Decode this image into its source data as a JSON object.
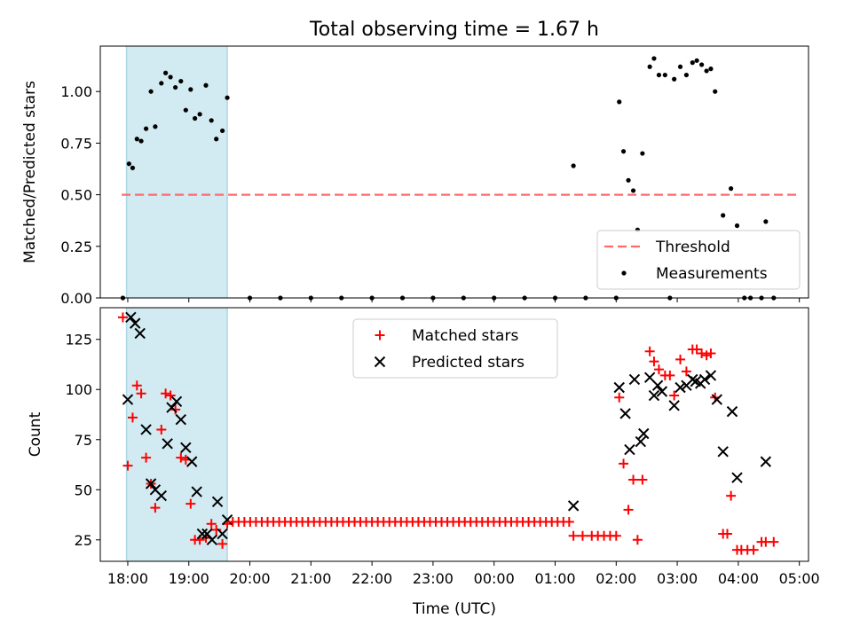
{
  "figure": {
    "title": "Total observing time = 1.67 h",
    "xlabel": "Time (UTC)"
  },
  "chart_data": [
    {
      "type": "scatter",
      "ylabel": "Matched/Predicted stars",
      "xlim": [
        17.55,
        29.15
      ],
      "ylim": [
        0,
        1.22
      ],
      "yticks": [
        0.0,
        0.25,
        0.5,
        0.75,
        1.0
      ],
      "ytick_labels": [
        "0.00",
        "0.25",
        "0.50",
        "0.75",
        "1.00"
      ],
      "xticks": [
        18,
        19,
        20,
        21,
        22,
        23,
        24,
        25,
        26,
        27,
        28,
        29
      ],
      "shaded_span": {
        "x": [
          17.98,
          19.63
        ],
        "color": "#add8e6"
      },
      "legend_position": "lower right",
      "series": [
        {
          "name": "Threshold",
          "kind": "hline",
          "y": 0.5,
          "x": [
            17.9,
            29.0
          ],
          "color": "#ff6b6b",
          "style": "dashed"
        },
        {
          "name": "Measurements",
          "kind": "points",
          "color": "#000000",
          "x": [
            17.92,
            18.02,
            18.08,
            18.15,
            18.22,
            18.3,
            18.38,
            18.45,
            18.55,
            18.62,
            18.7,
            18.78,
            18.87,
            18.95,
            19.03,
            19.1,
            19.18,
            19.28,
            19.37,
            19.45,
            19.55,
            19.63,
            20.0,
            20.5,
            21.0,
            21.5,
            22.0,
            22.5,
            23.0,
            23.5,
            24.0,
            24.5,
            25.0,
            25.3,
            25.5,
            26.0,
            26.05,
            26.12,
            26.2,
            26.28,
            26.35,
            26.43,
            26.55,
            26.62,
            26.7,
            26.8,
            26.88,
            26.95,
            27.05,
            27.15,
            27.25,
            27.32,
            27.4,
            27.48,
            27.55,
            27.62,
            27.75,
            27.88,
            27.98,
            28.1,
            28.2,
            28.38,
            28.45,
            28.58
          ],
          "y": [
            0.0,
            0.65,
            0.63,
            0.77,
            0.76,
            0.82,
            1.0,
            0.83,
            1.04,
            1.09,
            1.07,
            1.02,
            1.05,
            0.91,
            1.01,
            0.87,
            0.89,
            1.03,
            0.86,
            0.77,
            0.81,
            0.97,
            0.0,
            0.0,
            0.0,
            0.0,
            0.0,
            0.0,
            0.0,
            0.0,
            0.0,
            0.0,
            0.0,
            0.64,
            0.0,
            0.0,
            0.95,
            0.71,
            0.57,
            0.52,
            0.33,
            0.7,
            1.12,
            1.16,
            1.08,
            1.08,
            0.0,
            1.06,
            1.12,
            1.08,
            1.14,
            1.15,
            1.13,
            1.1,
            1.11,
            1.0,
            0.4,
            0.53,
            0.35,
            0.0,
            0.0,
            0.0,
            0.37,
            0.0
          ]
        }
      ]
    },
    {
      "type": "scatter",
      "ylabel": "Count",
      "xlim": [
        17.55,
        29.15
      ],
      "ylim": [
        14.3,
        140.8
      ],
      "yticks": [
        25,
        50,
        75,
        100,
        125
      ],
      "ytick_labels": [
        "25",
        "50",
        "75",
        "100",
        "125"
      ],
      "xticks": [
        18,
        19,
        20,
        21,
        22,
        23,
        24,
        25,
        26,
        27,
        28,
        29
      ],
      "xtick_labels": [
        "18:00",
        "19:00",
        "20:00",
        "21:00",
        "22:00",
        "23:00",
        "00:00",
        "01:00",
        "02:00",
        "03:00",
        "04:00",
        "05:00"
      ],
      "shaded_span": {
        "x": [
          17.98,
          19.63
        ],
        "color": "#add8e6"
      },
      "legend_position": "upper center",
      "series": [
        {
          "name": "Matched stars",
          "marker": "+",
          "color": "#ff0000",
          "x": [
            17.92,
            18.0,
            18.08,
            18.15,
            18.22,
            18.3,
            18.38,
            18.45,
            18.55,
            18.62,
            18.7,
            18.78,
            18.87,
            18.95,
            19.03,
            19.1,
            19.18,
            19.28,
            19.37,
            19.45,
            19.55,
            19.63,
            25.3,
            25.45,
            25.6,
            25.7,
            25.8,
            25.9,
            26.0,
            26.05,
            26.12,
            26.2,
            26.28,
            26.35,
            26.43,
            26.55,
            26.62,
            26.7,
            26.8,
            26.88,
            26.95,
            27.05,
            27.15,
            27.25,
            27.32,
            27.4,
            27.48,
            27.55,
            27.62,
            27.75,
            27.82,
            27.88,
            27.98,
            28.05,
            28.15,
            28.25,
            28.38,
            28.45,
            28.58
          ],
          "y": [
            136,
            62,
            86,
            102,
            98,
            66,
            53,
            41,
            80,
            98,
            97,
            90,
            66,
            65,
            43,
            25,
            25,
            26,
            33,
            30,
            23,
            33,
            27,
            27,
            27,
            27,
            27,
            27,
            27,
            96,
            63,
            40,
            55,
            25,
            55,
            119,
            114,
            110,
            107,
            107,
            97,
            115,
            109,
            120,
            120,
            118,
            117,
            118,
            96,
            28,
            28,
            47,
            20,
            20,
            20,
            20,
            24,
            24,
            24
          ]
        },
        {
          "name": "Predicted stars",
          "marker": "x",
          "color": "#000000",
          "x": [
            18.0,
            18.05,
            18.12,
            18.2,
            18.3,
            18.38,
            18.45,
            18.55,
            18.65,
            18.72,
            18.8,
            18.87,
            18.95,
            19.05,
            19.13,
            19.22,
            19.3,
            19.38,
            19.47,
            19.55,
            19.63,
            25.3,
            26.05,
            26.15,
            26.22,
            26.3,
            26.4,
            26.45,
            26.55,
            26.62,
            26.68,
            26.75,
            26.95,
            27.05,
            27.15,
            27.25,
            27.3,
            27.38,
            27.45,
            27.55,
            27.65,
            27.75,
            27.9,
            27.98,
            28.45
          ],
          "y": [
            95,
            136,
            133,
            128,
            80,
            53,
            50,
            47,
            73,
            91,
            94,
            85,
            71,
            64,
            49,
            28,
            28,
            25,
            44,
            28,
            35,
            42,
            101,
            88,
            70,
            105,
            74,
            78,
            106,
            97,
            102,
            99,
            92,
            101,
            102,
            105,
            104,
            103,
            105,
            107,
            95,
            69,
            89,
            56,
            64
          ]
        },
        {
          "kind": "constant_run",
          "marker": "+",
          "color": "#ff0000",
          "y": 34,
          "x_start": 19.72,
          "x_end": 25.23,
          "step": 0.095
        }
      ]
    }
  ]
}
